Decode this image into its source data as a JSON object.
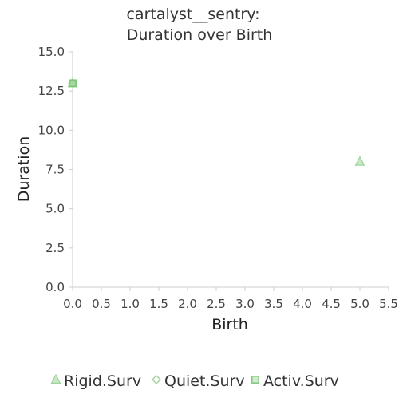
{
  "chart_data": {
    "type": "scatter",
    "title_line1": "cartalyst__sentry:",
    "title_line2": "Duration over Birth",
    "xlabel": "Birth",
    "ylabel": "Duration",
    "xlim": [
      0,
      5.5
    ],
    "ylim": [
      0,
      15
    ],
    "x_ticks": [
      "0.0",
      "0.5",
      "1.0",
      "1.5",
      "2.0",
      "2.5",
      "3.0",
      "3.5",
      "4.0",
      "4.5",
      "5.0",
      "5.5"
    ],
    "y_ticks": [
      "0.0",
      "2.5",
      "5.0",
      "7.5",
      "10.0",
      "12.5",
      "15.0"
    ],
    "x_tick_values": [
      0,
      0.5,
      1,
      1.5,
      2,
      2.5,
      3,
      3.5,
      4,
      4.5,
      5,
      5.5
    ],
    "y_tick_values": [
      0,
      2.5,
      5,
      7.5,
      10,
      12.5,
      15
    ],
    "grid": false,
    "legend_position": "bottom",
    "series": [
      {
        "name": "Rigid.Surv",
        "marker": "triangle",
        "color": "#9ed49a",
        "points": [
          {
            "x": 5.0,
            "y": 8.0
          },
          {
            "x": 0.0,
            "y": 13.0
          }
        ]
      },
      {
        "name": "Quiet.Surv",
        "marker": "diamond",
        "color": "#9ed49a",
        "points": [
          {
            "x": 0.0,
            "y": 13.0
          }
        ]
      },
      {
        "name": "Activ.Surv",
        "marker": "square",
        "color": "#7cc474",
        "points": [
          {
            "x": 0.0,
            "y": 13.0
          }
        ]
      }
    ]
  }
}
